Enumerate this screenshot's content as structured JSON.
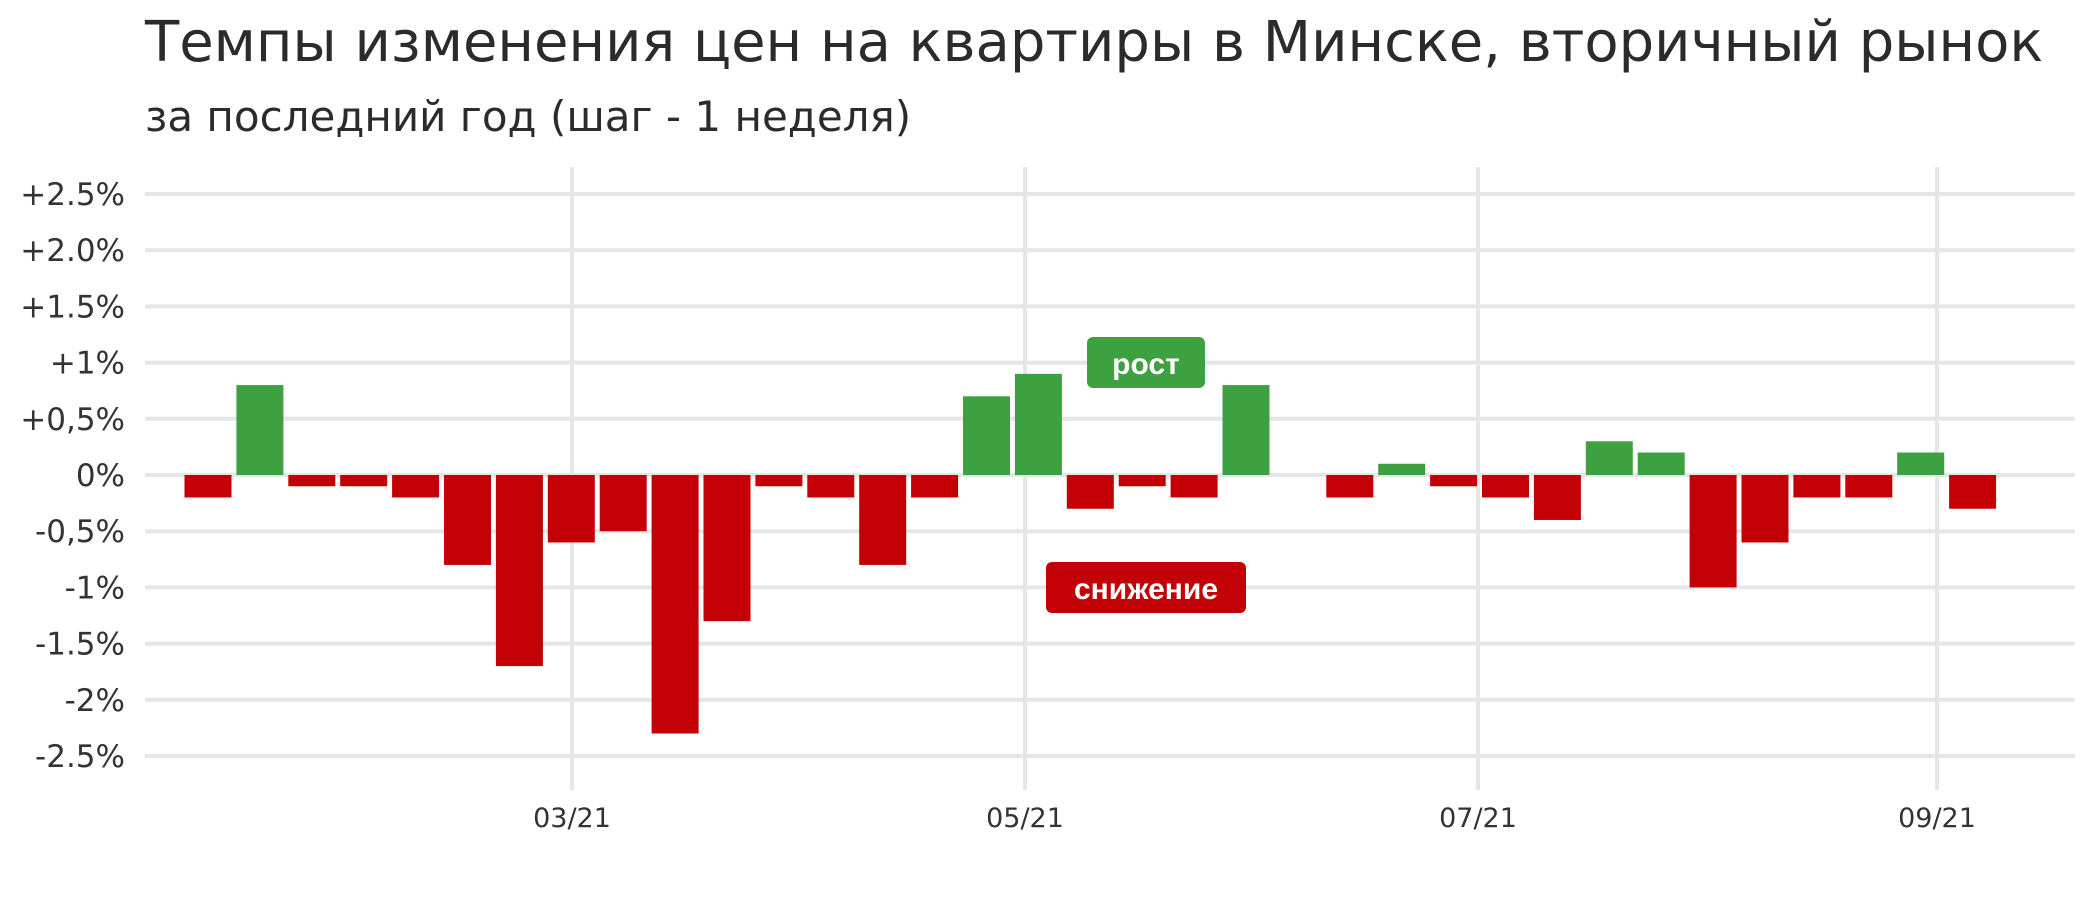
{
  "chart_data": {
    "type": "bar",
    "title": "Темпы изменения цен на квартиры в Минске, вторичный рынок",
    "subtitle": "за последний год (шаг - 1 неделя)",
    "ylim": [
      -2.5,
      2.5
    ],
    "y_ticks": [
      {
        "value": 2.5,
        "label": "+2.5%"
      },
      {
        "value": 2.0,
        "label": "+2.0%"
      },
      {
        "value": 1.5,
        "label": "+1.5%"
      },
      {
        "value": 1.0,
        "label": "+1%"
      },
      {
        "value": 0.5,
        "label": "+0,5%"
      },
      {
        "value": 0.0,
        "label": "0%"
      },
      {
        "value": -0.5,
        "label": "-0,5%"
      },
      {
        "value": -1.0,
        "label": "-1%"
      },
      {
        "value": -1.5,
        "label": "-1.5%"
      },
      {
        "value": -2.0,
        "label": "-2%"
      },
      {
        "value": -2.5,
        "label": "-2.5%"
      }
    ],
    "x_ticks": [
      "03/21",
      "05/21",
      "07/21",
      "09/21"
    ],
    "grid": true,
    "colors": {
      "positive": "#3da142",
      "negative": "#c20005",
      "grid": "#e6e6e6"
    },
    "legend": [
      {
        "label": "рост",
        "color": "#3da142"
      },
      {
        "label": "снижение",
        "color": "#c20005"
      }
    ],
    "values": [
      -0.2,
      0.8,
      -0.1,
      -0.1,
      -0.2,
      -0.8,
      -1.7,
      -0.6,
      -0.5,
      -2.3,
      -1.3,
      -0.1,
      -0.2,
      -0.8,
      -0.2,
      0.7,
      0.9,
      -0.3,
      -0.1,
      -0.2,
      0.8,
      null,
      -0.2,
      0.1,
      -0.1,
      -0.2,
      -0.4,
      0.3,
      0.2,
      -1.0,
      -0.6,
      -0.2,
      -0.2,
      0.2,
      -0.3
    ]
  }
}
